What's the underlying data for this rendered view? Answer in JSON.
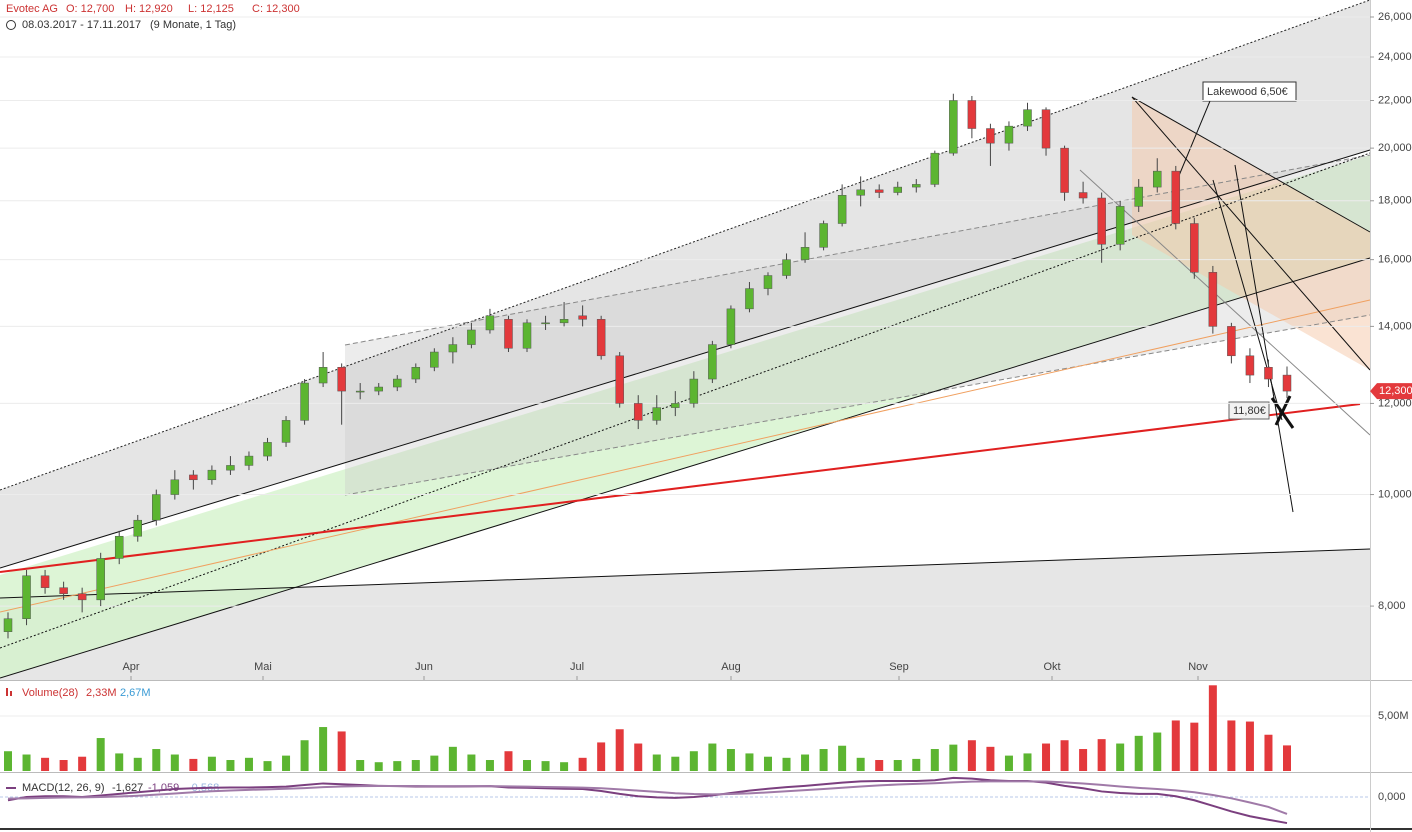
{
  "chart_data": {
    "type": "candlestick",
    "title": "Evotec AG",
    "ohlc_labels": [
      "O: 12,700",
      "H: 12,920",
      "L: 12,125",
      "C: 12,300"
    ],
    "date_range": "08.03.2017 - 17.11.2017",
    "span": "(9 Monate, 1 Tag)",
    "x_labels": [
      "Apr",
      "Mai",
      "Jun",
      "Jul",
      "Aug",
      "Sep",
      "Okt",
      "Nov"
    ],
    "log_scale": true,
    "grid": true,
    "up_color": "#5cb531",
    "down_color": "#e3393c",
    "ylim": [
      6.9,
      26.9
    ],
    "yticks": [
      {
        "value": 8,
        "label": "8,000"
      },
      {
        "value": 10,
        "label": "10,000"
      },
      {
        "value": 12,
        "label": "12,000"
      },
      {
        "value": 14,
        "label": "14,000"
      },
      {
        "value": 16,
        "label": "16,000"
      },
      {
        "value": 18,
        "label": "18,000"
      },
      {
        "value": 20,
        "label": "20,000"
      },
      {
        "value": 22,
        "label": "22,000"
      },
      {
        "value": 24,
        "label": "24,000"
      },
      {
        "value": 26,
        "label": "26,000"
      }
    ],
    "last_price_label": "12,300",
    "annotations": [
      "Lakewood 6,50€",
      "11,80€"
    ],
    "candles": [
      [
        7.6,
        7.9,
        7.5,
        7.8
      ],
      [
        7.8,
        8.6,
        7.7,
        8.5
      ],
      [
        8.5,
        8.6,
        8.2,
        8.3
      ],
      [
        8.3,
        8.4,
        8.1,
        8.2
      ],
      [
        8.2,
        8.3,
        7.9,
        8.1
      ],
      [
        8.1,
        8.9,
        8.0,
        8.8
      ],
      [
        8.8,
        9.3,
        8.7,
        9.2
      ],
      [
        9.2,
        9.6,
        9.1,
        9.5
      ],
      [
        9.5,
        10.1,
        9.4,
        10.0
      ],
      [
        10.0,
        10.5,
        9.9,
        10.3
      ],
      [
        10.4,
        10.5,
        10.1,
        10.3
      ],
      [
        10.3,
        10.6,
        10.2,
        10.5
      ],
      [
        10.5,
        10.8,
        10.4,
        10.6
      ],
      [
        10.6,
        10.9,
        10.5,
        10.8
      ],
      [
        10.8,
        11.2,
        10.7,
        11.1
      ],
      [
        11.1,
        11.7,
        11.0,
        11.6
      ],
      [
        11.6,
        12.6,
        11.5,
        12.5
      ],
      [
        12.5,
        13.3,
        12.4,
        12.9
      ],
      [
        12.9,
        13.0,
        11.5,
        12.3
      ],
      [
        12.3,
        12.5,
        12.1,
        12.3
      ],
      [
        12.3,
        12.5,
        12.2,
        12.4
      ],
      [
        12.4,
        12.7,
        12.3,
        12.6
      ],
      [
        12.6,
        13.0,
        12.5,
        12.9
      ],
      [
        12.9,
        13.4,
        12.8,
        13.3
      ],
      [
        13.3,
        13.7,
        13.0,
        13.5
      ],
      [
        13.5,
        14.1,
        13.4,
        13.9
      ],
      [
        13.9,
        14.5,
        13.8,
        14.3
      ],
      [
        14.2,
        14.3,
        13.3,
        13.4
      ],
      [
        13.4,
        14.2,
        13.3,
        14.1
      ],
      [
        14.1,
        14.3,
        13.9,
        14.1
      ],
      [
        14.1,
        14.7,
        14.0,
        14.2
      ],
      [
        14.3,
        14.6,
        14.0,
        14.2
      ],
      [
        14.2,
        14.3,
        13.1,
        13.2
      ],
      [
        13.2,
        13.3,
        11.9,
        12.0
      ],
      [
        12.0,
        12.2,
        11.4,
        11.6
      ],
      [
        11.6,
        12.2,
        11.5,
        11.9
      ],
      [
        11.9,
        12.3,
        11.7,
        12.0
      ],
      [
        12.0,
        12.8,
        11.9,
        12.6
      ],
      [
        12.6,
        13.6,
        12.5,
        13.5
      ],
      [
        13.5,
        14.6,
        13.4,
        14.5
      ],
      [
        14.5,
        15.3,
        14.4,
        15.1
      ],
      [
        15.1,
        15.6,
        14.9,
        15.5
      ],
      [
        15.5,
        16.2,
        15.4,
        16.0
      ],
      [
        16.0,
        16.9,
        15.9,
        16.4
      ],
      [
        16.4,
        17.3,
        16.3,
        17.2
      ],
      [
        17.2,
        18.6,
        17.1,
        18.2
      ],
      [
        18.2,
        18.9,
        17.8,
        18.4
      ],
      [
        18.4,
        18.6,
        18.1,
        18.3
      ],
      [
        18.3,
        18.7,
        18.2,
        18.5
      ],
      [
        18.5,
        18.8,
        18.3,
        18.6
      ],
      [
        18.6,
        19.9,
        18.5,
        19.8
      ],
      [
        19.8,
        22.3,
        19.7,
        22.0
      ],
      [
        22.0,
        22.2,
        20.4,
        20.8
      ],
      [
        20.8,
        21.0,
        19.3,
        20.2
      ],
      [
        20.2,
        21.1,
        19.9,
        20.9
      ],
      [
        20.9,
        21.9,
        20.7,
        21.6
      ],
      [
        21.6,
        21.7,
        19.7,
        20.0
      ],
      [
        20.0,
        20.1,
        18.0,
        18.3
      ],
      [
        18.3,
        18.7,
        17.9,
        18.1
      ],
      [
        18.1,
        18.3,
        15.9,
        16.5
      ],
      [
        16.5,
        18.0,
        16.3,
        17.8
      ],
      [
        17.8,
        18.8,
        17.6,
        18.5
      ],
      [
        18.5,
        19.6,
        18.3,
        19.1
      ],
      [
        19.1,
        19.3,
        17.0,
        17.2
      ],
      [
        17.2,
        17.4,
        15.4,
        15.6
      ],
      [
        15.6,
        15.8,
        13.8,
        14.0
      ],
      [
        14.0,
        14.1,
        13.0,
        13.2
      ],
      [
        13.2,
        13.4,
        12.5,
        12.7
      ],
      [
        12.9,
        13.1,
        12.4,
        12.6
      ],
      [
        12.7,
        12.92,
        12.125,
        12.3
      ]
    ],
    "volume": {
      "name": "Volume(28)",
      "last_label": "2,33M",
      "avg_label": "2,67M",
      "ylim": [
        0,
        8.1
      ],
      "yticks": [
        {
          "value": 5,
          "label": "5,00M"
        }
      ],
      "values": [
        1.8,
        1.5,
        1.2,
        1.0,
        1.3,
        3.0,
        1.6,
        1.2,
        2.0,
        1.5,
        1.1,
        1.3,
        1.0,
        1.2,
        0.9,
        1.4,
        2.8,
        4.0,
        3.6,
        1.0,
        0.8,
        0.9,
        1.0,
        1.4,
        2.2,
        1.5,
        1.0,
        1.8,
        1.0,
        0.9,
        0.8,
        1.2,
        2.6,
        3.8,
        2.5,
        1.5,
        1.3,
        1.8,
        2.5,
        2.0,
        1.6,
        1.3,
        1.2,
        1.5,
        2.0,
        2.3,
        1.2,
        1.0,
        1.0,
        1.1,
        2.0,
        2.4,
        2.8,
        2.2,
        1.4,
        1.6,
        2.5,
        2.8,
        2.0,
        2.9,
        2.5,
        3.2,
        3.5,
        4.6,
        4.4,
        7.8,
        4.6,
        4.5,
        3.3,
        2.33
      ]
    },
    "macd": {
      "name": "MACD(12, 26, 9)",
      "value_labels": [
        "-1,627",
        "-1,059",
        "-0,568"
      ],
      "ylim": [
        -2.06,
        1.44
      ],
      "yticks": [
        {
          "value": 0,
          "label": "0,000"
        }
      ],
      "series": [
        {
          "name": "MACD",
          "color": "#7b3f7f",
          "values": [
            -0.2,
            0.0,
            0.05,
            0.05,
            0.0,
            0.1,
            0.2,
            0.3,
            0.4,
            0.5,
            0.55,
            0.58,
            0.6,
            0.6,
            0.62,
            0.65,
            0.75,
            0.85,
            0.8,
            0.75,
            0.7,
            0.68,
            0.66,
            0.66,
            0.66,
            0.67,
            0.68,
            0.6,
            0.58,
            0.55,
            0.52,
            0.5,
            0.38,
            0.2,
            0.05,
            -0.02,
            -0.05,
            0.0,
            0.1,
            0.25,
            0.4,
            0.52,
            0.62,
            0.7,
            0.8,
            0.9,
            0.98,
            1.0,
            1.0,
            1.0,
            1.05,
            1.2,
            1.15,
            1.05,
            1.0,
            1.0,
            0.9,
            0.7,
            0.55,
            0.35,
            0.25,
            0.2,
            0.2,
            0.05,
            -0.2,
            -0.55,
            -0.9,
            -1.2,
            -1.42,
            -1.627
          ]
        },
        {
          "name": "Signal",
          "color": "#a07aa8",
          "values": [
            -0.1,
            -0.08,
            -0.05,
            -0.03,
            -0.02,
            0.0,
            0.03,
            0.08,
            0.15,
            0.22,
            0.3,
            0.36,
            0.41,
            0.45,
            0.48,
            0.52,
            0.56,
            0.62,
            0.66,
            0.68,
            0.69,
            0.69,
            0.69,
            0.68,
            0.68,
            0.68,
            0.68,
            0.67,
            0.65,
            0.63,
            0.61,
            0.59,
            0.55,
            0.48,
            0.4,
            0.32,
            0.24,
            0.19,
            0.17,
            0.19,
            0.23,
            0.29,
            0.36,
            0.43,
            0.5,
            0.58,
            0.66,
            0.73,
            0.78,
            0.82,
            0.86,
            0.92,
            0.96,
            0.98,
            0.98,
            0.98,
            0.97,
            0.92,
            0.85,
            0.76,
            0.66,
            0.57,
            0.5,
            0.42,
            0.3,
            0.13,
            -0.08,
            -0.34,
            -0.62,
            -1.059
          ]
        }
      ]
    }
  }
}
